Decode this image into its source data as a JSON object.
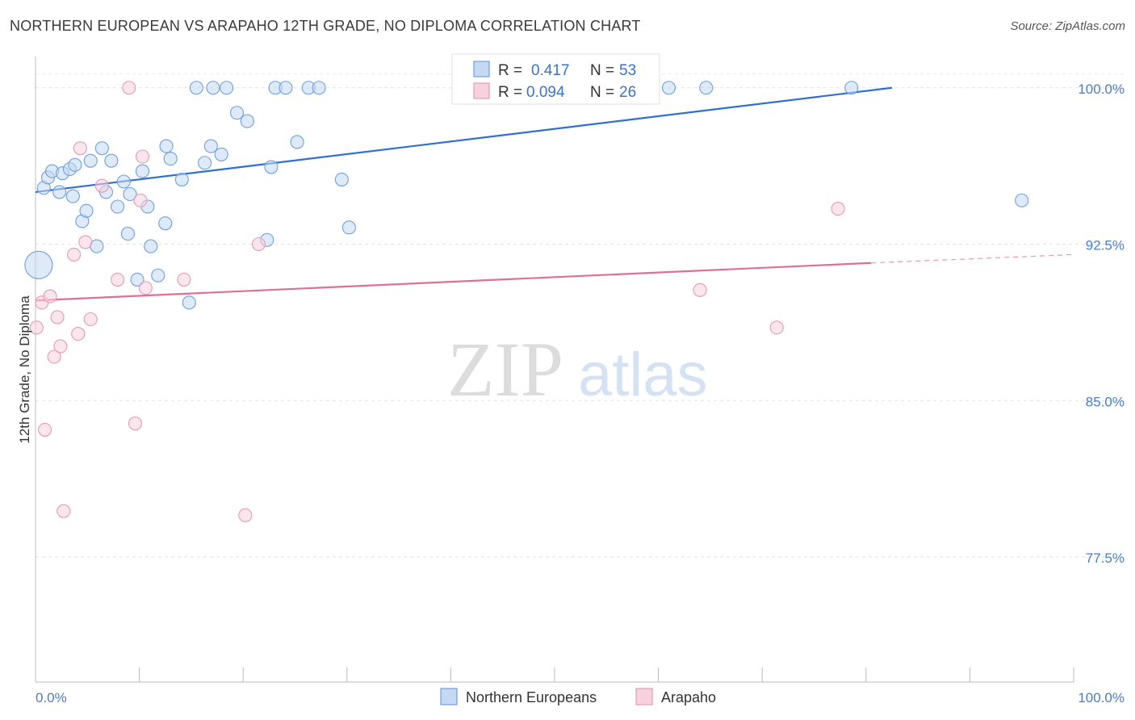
{
  "chart_data": {
    "type": "scatter",
    "title": "NORTHERN EUROPEAN VS ARAPAHO 12TH GRADE, NO DIPLOMA CORRELATION CHART",
    "source": "Source: ZipAtlas.com",
    "ylabel": "12th Grade, No Diploma",
    "xlim": [
      0,
      100
    ],
    "ylim": [
      71.5,
      101.5
    ],
    "y_ticks": [
      {
        "value": 100.0,
        "label": "100.0%"
      },
      {
        "value": 92.5,
        "label": "92.5%"
      },
      {
        "value": 85.0,
        "label": "85.0%"
      },
      {
        "value": 77.5,
        "label": "77.5%"
      }
    ],
    "x_tick_labels": {
      "left": "0.0%",
      "right": "100.0%"
    },
    "grid": true,
    "watermark": {
      "zip": "ZIP",
      "atlas": "atlas"
    },
    "legend": {
      "position": "top-center",
      "rows": [
        {
          "r_label": "R = ",
          "r_value": "0.417",
          "n_label": "N = ",
          "n_value": "53"
        },
        {
          "r_label": "R = ",
          "r_value": "0.094",
          "n_label": "N = ",
          "n_value": "26"
        }
      ]
    },
    "series": [
      {
        "name": "Northern Europeans",
        "color": "#6fa0e0",
        "fill": "#c5d9f3",
        "line_color": "#2f6fcf",
        "trend": {
          "x0": 0,
          "y0": 95.0,
          "x1": 82.5,
          "y1": 100.0,
          "dashed_to": null
        },
        "points": [
          [
            0.3,
            91.5,
            17
          ],
          [
            0.8,
            95.2,
            8
          ],
          [
            1.2,
            95.7,
            8
          ],
          [
            1.6,
            96.0,
            8
          ],
          [
            2.3,
            95.0,
            8
          ],
          [
            2.6,
            95.9,
            8
          ],
          [
            3.3,
            96.1,
            8
          ],
          [
            3.6,
            94.8,
            8
          ],
          [
            3.8,
            96.3,
            8
          ],
          [
            4.5,
            93.6,
            8
          ],
          [
            4.9,
            94.1,
            8
          ],
          [
            5.3,
            96.5,
            8
          ],
          [
            5.9,
            92.4,
            8
          ],
          [
            6.4,
            97.1,
            8
          ],
          [
            6.8,
            95.0,
            8
          ],
          [
            7.3,
            96.5,
            8
          ],
          [
            7.9,
            94.3,
            8
          ],
          [
            8.5,
            95.5,
            8
          ],
          [
            8.9,
            93.0,
            8
          ],
          [
            9.1,
            94.9,
            8
          ],
          [
            9.8,
            90.8,
            8
          ],
          [
            10.3,
            96.0,
            8
          ],
          [
            10.8,
            94.3,
            8
          ],
          [
            11.1,
            92.4,
            8
          ],
          [
            11.8,
            91.0,
            8
          ],
          [
            12.5,
            93.5,
            8
          ],
          [
            12.6,
            97.2,
            8
          ],
          [
            13.0,
            96.6,
            8
          ],
          [
            14.1,
            95.6,
            8
          ],
          [
            14.8,
            89.7,
            8
          ],
          [
            15.5,
            100.0,
            8
          ],
          [
            16.3,
            96.4,
            8
          ],
          [
            16.9,
            97.2,
            8
          ],
          [
            17.1,
            100.0,
            8
          ],
          [
            17.9,
            96.8,
            8
          ],
          [
            18.4,
            100.0,
            8
          ],
          [
            19.4,
            98.8,
            8
          ],
          [
            20.4,
            98.4,
            8
          ],
          [
            22.3,
            92.7,
            8
          ],
          [
            22.7,
            96.2,
            8
          ],
          [
            23.1,
            100.0,
            8
          ],
          [
            24.1,
            100.0,
            8
          ],
          [
            25.2,
            97.4,
            8
          ],
          [
            26.3,
            100.0,
            8
          ],
          [
            27.3,
            100.0,
            8
          ],
          [
            29.5,
            95.6,
            8
          ],
          [
            30.2,
            93.3,
            8
          ],
          [
            41.0,
            100.0,
            8
          ],
          [
            50.5,
            100.0,
            8
          ],
          [
            61.0,
            100.0,
            8
          ],
          [
            64.6,
            100.0,
            8
          ],
          [
            78.6,
            100.0,
            8
          ],
          [
            95.0,
            94.6,
            8
          ]
        ]
      },
      {
        "name": "Arapaho",
        "color": "#e79ab5",
        "fill": "#f7d1de",
        "line_color": "#e06e96",
        "trend": {
          "x0": 0,
          "y0": 89.8,
          "x1": 80.5,
          "y1": 91.6,
          "dashed_to": {
            "x": 100,
            "y": 92.0
          }
        },
        "points": [
          [
            0.1,
            88.5,
            8
          ],
          [
            0.6,
            89.7,
            8
          ],
          [
            0.9,
            83.6,
            8
          ],
          [
            1.4,
            90.0,
            8
          ],
          [
            1.8,
            87.1,
            8
          ],
          [
            2.1,
            89.0,
            8
          ],
          [
            2.4,
            87.6,
            8
          ],
          [
            2.7,
            79.7,
            8
          ],
          [
            3.7,
            92.0,
            8
          ],
          [
            4.1,
            88.2,
            8
          ],
          [
            4.3,
            97.1,
            8
          ],
          [
            4.8,
            92.6,
            8
          ],
          [
            5.3,
            88.9,
            8
          ],
          [
            6.4,
            95.3,
            8
          ],
          [
            7.9,
            90.8,
            8
          ],
          [
            9.0,
            100.0,
            8
          ],
          [
            9.6,
            83.9,
            8
          ],
          [
            10.1,
            94.6,
            8
          ],
          [
            10.3,
            96.7,
            8
          ],
          [
            10.6,
            90.4,
            8
          ],
          [
            14.3,
            90.8,
            8
          ],
          [
            20.2,
            79.5,
            8
          ],
          [
            21.5,
            92.5,
            8
          ],
          [
            64.0,
            90.3,
            8
          ],
          [
            71.4,
            88.5,
            8
          ],
          [
            77.3,
            94.2,
            8
          ]
        ]
      }
    ]
  }
}
